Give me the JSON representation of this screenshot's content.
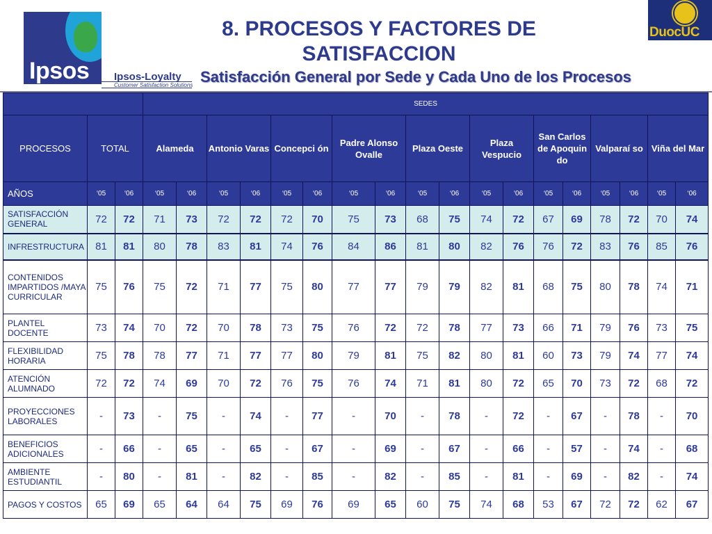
{
  "header": {
    "title": "8. PROCESOS Y FACTORES DE SATISFACCION",
    "subtitle": "Satisfacción General por Sede y Cada Uno de los Procesos"
  },
  "logos": {
    "ipsos": "Ipsos",
    "ipsos_loyalty": "Ipsos-Loyalty",
    "ipsos_loyalty_sub": "Customer Satisfaction Solutions",
    "duoc": "DuocUC"
  },
  "colors": {
    "header_bg": "#2e3a98",
    "highlight_rows": "#d4ecec",
    "text": "#2e3a98"
  },
  "table": {
    "sedes_label": "SEDES",
    "procesos_label": "PROCESOS",
    "total_label": "TOTAL",
    "anos_label": "AÑOS",
    "sedes": [
      "Alameda",
      "Antonio Varas",
      "Concepci ón",
      "Padre Alonso Ovalle",
      "Plaza Oeste",
      "Plaza Vespucio",
      "San Carlos de Apoquin do",
      "Valparaí so",
      "Viña del Mar"
    ],
    "years": [
      "‘05",
      "‘06"
    ],
    "rows": [
      {
        "label": "SATISFACCIÓN GENERAL",
        "values": [
          "72",
          "72",
          "71",
          "73",
          "72",
          "72",
          "72",
          "70",
          "75",
          "73",
          "68",
          "75",
          "74",
          "72",
          "67",
          "69",
          "78",
          "72",
          "70",
          "74"
        ]
      },
      {
        "label": "INFRESTRUCTURA",
        "values": [
          "81",
          "81",
          "80",
          "78",
          "83",
          "81",
          "74",
          "76",
          "84",
          "86",
          "81",
          "80",
          "82",
          "76",
          "76",
          "72",
          "83",
          "76",
          "85",
          "76"
        ]
      },
      {
        "label": "CONTENIDOS IMPARTIDOS /MAYA CURRICULAR",
        "values": [
          "75",
          "76",
          "75",
          "72",
          "71",
          "77",
          "75",
          "80",
          "77",
          "77",
          "79",
          "79",
          "82",
          "81",
          "68",
          "75",
          "80",
          "78",
          "74",
          "71"
        ]
      },
      {
        "label": "PLANTEL DOCENTE",
        "values": [
          "73",
          "74",
          "70",
          "72",
          "70",
          "78",
          "73",
          "75",
          "76",
          "72",
          "72",
          "78",
          "77",
          "73",
          "66",
          "71",
          "79",
          "76",
          "73",
          "75"
        ]
      },
      {
        "label": "FLEXIBILIDAD HORARIA",
        "values": [
          "75",
          "78",
          "78",
          "77",
          "71",
          "77",
          "77",
          "80",
          "79",
          "81",
          "75",
          "82",
          "80",
          "81",
          "60",
          "73",
          "79",
          "74",
          "77",
          "74"
        ]
      },
      {
        "label": "ATENCIÓN ALUMNADO",
        "values": [
          "72",
          "72",
          "74",
          "69",
          "70",
          "72",
          "76",
          "75",
          "76",
          "74",
          "71",
          "81",
          "80",
          "72",
          "65",
          "70",
          "73",
          "72",
          "68",
          "72"
        ]
      },
      {
        "label": "PROYECCIONES LABORALES",
        "values": [
          "-",
          "73",
          "-",
          "75",
          "-",
          "74",
          "-",
          "77",
          "-",
          "70",
          "-",
          "78",
          "-",
          "72",
          "-",
          "67",
          "-",
          "78",
          "-",
          "70"
        ]
      },
      {
        "label": "BENEFICIOS ADICIONALES",
        "values": [
          "-",
          "66",
          "-",
          "65",
          "-",
          "65",
          "-",
          "67",
          "-",
          "69",
          "-",
          "67",
          "-",
          "66",
          "-",
          "57",
          "-",
          "74",
          "-",
          "68"
        ]
      },
      {
        "label": "AMBIENTE ESTUDIANTIL",
        "values": [
          "-",
          "80",
          "-",
          "81",
          "-",
          "82",
          "-",
          "85",
          "-",
          "82",
          "-",
          "85",
          "-",
          "81",
          "-",
          "69",
          "-",
          "82",
          "-",
          "74"
        ]
      },
      {
        "label": "PAGOS Y COSTOS",
        "values": [
          "65",
          "69",
          "65",
          "64",
          "64",
          "75",
          "69",
          "76",
          "69",
          "65",
          "60",
          "75",
          "74",
          "68",
          "53",
          "67",
          "72",
          "72",
          "62",
          "67"
        ]
      }
    ]
  }
}
